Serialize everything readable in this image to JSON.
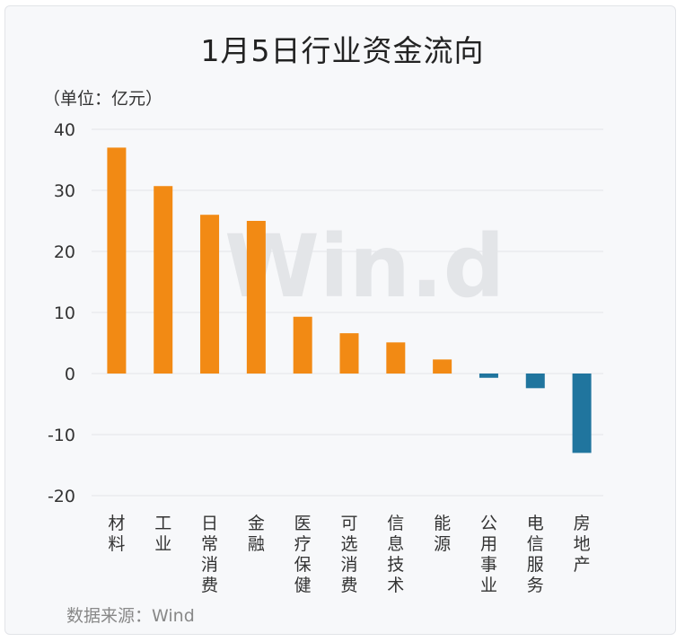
{
  "title": "1月5日行业资金流向",
  "unit_label": "（单位：亿元）",
  "source_label": "数据来源：Wind",
  "watermark": "Win.d",
  "colors": {
    "positive": "#f28a14",
    "negative": "#20759e",
    "grid": "#e3e5e8",
    "axis_text": "#333333"
  },
  "chart_data": {
    "type": "bar",
    "title": "1月5日行业资金流向",
    "ylabel": "（单位：亿元）",
    "xlabel": "",
    "ylim": [
      -20,
      40
    ],
    "yticks": [
      40,
      30,
      20,
      10,
      0,
      -10,
      -20
    ],
    "grid": true,
    "categories": [
      "材料",
      "工业",
      "日常消费",
      "金融",
      "医疗保健",
      "可选消费",
      "信息技术",
      "能源",
      "公用事业",
      "电信服务",
      "房地产"
    ],
    "values": [
      37,
      30.7,
      26,
      25,
      9.3,
      6.6,
      5.1,
      2.3,
      -0.7,
      -2.4,
      -13
    ]
  }
}
